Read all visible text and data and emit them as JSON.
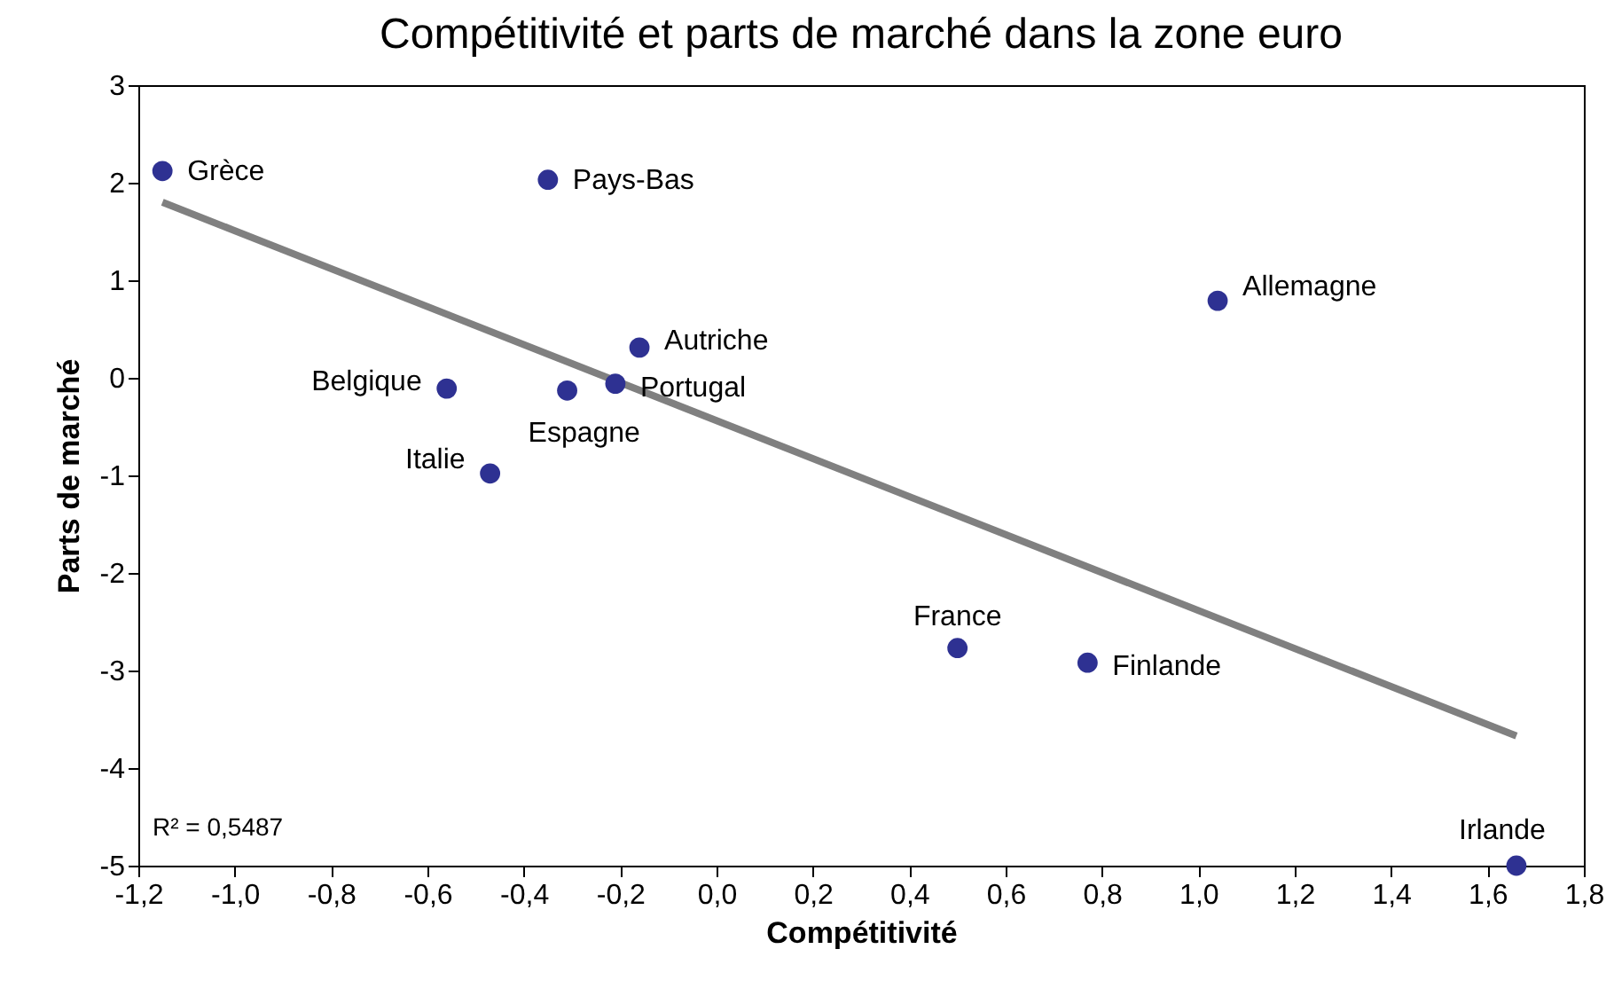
{
  "chart_data": {
    "type": "scatter",
    "title": "Compétitivité et parts de marché dans la zone euro",
    "xlabel": "Compétitivité",
    "ylabel": "Parts de marché",
    "xlim": [
      -1.2,
      1.8
    ],
    "ylim": [
      -5,
      3
    ],
    "xticks": [
      {
        "value": -1.2,
        "label": "-1,2"
      },
      {
        "value": -1.0,
        "label": "-1,0"
      },
      {
        "value": -0.8,
        "label": "-0,8"
      },
      {
        "value": -0.6,
        "label": "-0,6"
      },
      {
        "value": -0.4,
        "label": "-0,4"
      },
      {
        "value": -0.2,
        "label": "-0,2"
      },
      {
        "value": 0,
        "label": "0,0"
      },
      {
        "value": 0.2,
        "label": "0,2"
      },
      {
        "value": 0.4,
        "label": "0,4"
      },
      {
        "value": 0.6,
        "label": "0,6"
      },
      {
        "value": 0.8,
        "label": "0,8"
      },
      {
        "value": 1.0,
        "label": "1,0"
      },
      {
        "value": 1.2,
        "label": "1,2"
      },
      {
        "value": 1.4,
        "label": "1,4"
      },
      {
        "value": 1.6,
        "label": "1,6"
      },
      {
        "value": 1.8,
        "label": "1,8"
      }
    ],
    "yticks": [
      -5,
      -4,
      -3,
      -2,
      -1,
      0,
      1,
      2,
      3
    ],
    "series": [
      {
        "type": "line",
        "color": "#808080",
        "x": [
          -1.15,
          1.66
        ],
        "values": [
          1.8,
          -3.67
        ]
      },
      {
        "color": "#2e3192",
        "marker": "circle",
        "x": [
          -1.15,
          -0.35,
          1.04,
          -0.16,
          -0.56,
          -0.31,
          -0.21,
          -0.47,
          0.5,
          0.77,
          1.66
        ],
        "values": [
          2.12,
          2.03,
          0.79,
          0.31,
          -0.11,
          -0.13,
          -0.06,
          -0.98,
          -2.77,
          -2.92,
          -5
        ]
      }
    ],
    "annotations": [
      {
        "text": "Grèce",
        "x": -1.15,
        "y": 2.12
      },
      {
        "text": "Pays-Bas",
        "x": -0.35,
        "y": 2.03
      },
      {
        "text": "Allemagne",
        "x": 1.04,
        "y": 0.79
      },
      {
        "text": "Autriche",
        "x": -0.16,
        "y": 0.31
      },
      {
        "text": "Belgique",
        "x": -0.56,
        "y": -0.11
      },
      {
        "text": "Espagne",
        "x": -0.31,
        "y": -0.13
      },
      {
        "text": "Portugal",
        "x": -0.21,
        "y": -0.06
      },
      {
        "text": "Italie",
        "x": -0.47,
        "y": -0.98
      },
      {
        "text": "France",
        "x": 0.5,
        "y": -2.77
      },
      {
        "text": "Finlande",
        "x": 0.77,
        "y": -2.92
      },
      {
        "text": "Irlande",
        "x": 1.66,
        "y": -5
      },
      "R² = 0,5487"
    ]
  }
}
